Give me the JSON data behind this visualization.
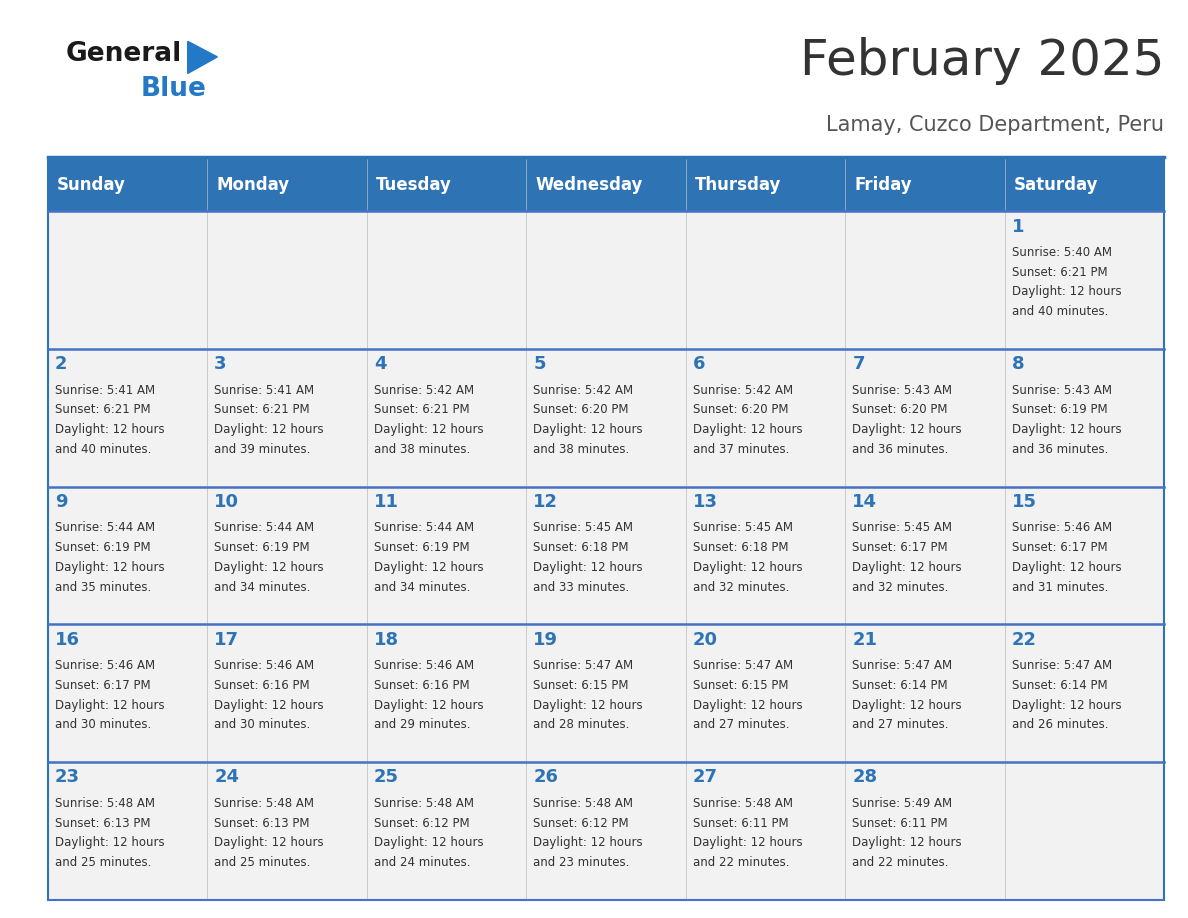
{
  "title": "February 2025",
  "subtitle": "Lamay, Cuzco Department, Peru",
  "days_of_week": [
    "Sunday",
    "Monday",
    "Tuesday",
    "Wednesday",
    "Thursday",
    "Friday",
    "Saturday"
  ],
  "header_bg": "#2E74B5",
  "header_text": "#FFFFFF",
  "row_bg_light": "#F2F2F2",
  "row_bg_white": "#FFFFFF",
  "cell_text_color": "#333333",
  "day_num_color": "#2E74B5",
  "border_color": "#2E74B5",
  "separator_color": "#4472C4",
  "title_color": "#333333",
  "subtitle_color": "#555555",
  "logo_text_color": "#1A1A1A",
  "logo_blue_color": "#2479C7",
  "calendar_data": [
    [
      {
        "day": "",
        "info": ""
      },
      {
        "day": "",
        "info": ""
      },
      {
        "day": "",
        "info": ""
      },
      {
        "day": "",
        "info": ""
      },
      {
        "day": "",
        "info": ""
      },
      {
        "day": "",
        "info": ""
      },
      {
        "day": "1",
        "info": "Sunrise: 5:40 AM\nSunset: 6:21 PM\nDaylight: 12 hours\nand 40 minutes."
      }
    ],
    [
      {
        "day": "2",
        "info": "Sunrise: 5:41 AM\nSunset: 6:21 PM\nDaylight: 12 hours\nand 40 minutes."
      },
      {
        "day": "3",
        "info": "Sunrise: 5:41 AM\nSunset: 6:21 PM\nDaylight: 12 hours\nand 39 minutes."
      },
      {
        "day": "4",
        "info": "Sunrise: 5:42 AM\nSunset: 6:21 PM\nDaylight: 12 hours\nand 38 minutes."
      },
      {
        "day": "5",
        "info": "Sunrise: 5:42 AM\nSunset: 6:20 PM\nDaylight: 12 hours\nand 38 minutes."
      },
      {
        "day": "6",
        "info": "Sunrise: 5:42 AM\nSunset: 6:20 PM\nDaylight: 12 hours\nand 37 minutes."
      },
      {
        "day": "7",
        "info": "Sunrise: 5:43 AM\nSunset: 6:20 PM\nDaylight: 12 hours\nand 36 minutes."
      },
      {
        "day": "8",
        "info": "Sunrise: 5:43 AM\nSunset: 6:19 PM\nDaylight: 12 hours\nand 36 minutes."
      }
    ],
    [
      {
        "day": "9",
        "info": "Sunrise: 5:44 AM\nSunset: 6:19 PM\nDaylight: 12 hours\nand 35 minutes."
      },
      {
        "day": "10",
        "info": "Sunrise: 5:44 AM\nSunset: 6:19 PM\nDaylight: 12 hours\nand 34 minutes."
      },
      {
        "day": "11",
        "info": "Sunrise: 5:44 AM\nSunset: 6:19 PM\nDaylight: 12 hours\nand 34 minutes."
      },
      {
        "day": "12",
        "info": "Sunrise: 5:45 AM\nSunset: 6:18 PM\nDaylight: 12 hours\nand 33 minutes."
      },
      {
        "day": "13",
        "info": "Sunrise: 5:45 AM\nSunset: 6:18 PM\nDaylight: 12 hours\nand 32 minutes."
      },
      {
        "day": "14",
        "info": "Sunrise: 5:45 AM\nSunset: 6:17 PM\nDaylight: 12 hours\nand 32 minutes."
      },
      {
        "day": "15",
        "info": "Sunrise: 5:46 AM\nSunset: 6:17 PM\nDaylight: 12 hours\nand 31 minutes."
      }
    ],
    [
      {
        "day": "16",
        "info": "Sunrise: 5:46 AM\nSunset: 6:17 PM\nDaylight: 12 hours\nand 30 minutes."
      },
      {
        "day": "17",
        "info": "Sunrise: 5:46 AM\nSunset: 6:16 PM\nDaylight: 12 hours\nand 30 minutes."
      },
      {
        "day": "18",
        "info": "Sunrise: 5:46 AM\nSunset: 6:16 PM\nDaylight: 12 hours\nand 29 minutes."
      },
      {
        "day": "19",
        "info": "Sunrise: 5:47 AM\nSunset: 6:15 PM\nDaylight: 12 hours\nand 28 minutes."
      },
      {
        "day": "20",
        "info": "Sunrise: 5:47 AM\nSunset: 6:15 PM\nDaylight: 12 hours\nand 27 minutes."
      },
      {
        "day": "21",
        "info": "Sunrise: 5:47 AM\nSunset: 6:14 PM\nDaylight: 12 hours\nand 27 minutes."
      },
      {
        "day": "22",
        "info": "Sunrise: 5:47 AM\nSunset: 6:14 PM\nDaylight: 12 hours\nand 26 minutes."
      }
    ],
    [
      {
        "day": "23",
        "info": "Sunrise: 5:48 AM\nSunset: 6:13 PM\nDaylight: 12 hours\nand 25 minutes."
      },
      {
        "day": "24",
        "info": "Sunrise: 5:48 AM\nSunset: 6:13 PM\nDaylight: 12 hours\nand 25 minutes."
      },
      {
        "day": "25",
        "info": "Sunrise: 5:48 AM\nSunset: 6:12 PM\nDaylight: 12 hours\nand 24 minutes."
      },
      {
        "day": "26",
        "info": "Sunrise: 5:48 AM\nSunset: 6:12 PM\nDaylight: 12 hours\nand 23 minutes."
      },
      {
        "day": "27",
        "info": "Sunrise: 5:48 AM\nSunset: 6:11 PM\nDaylight: 12 hours\nand 22 minutes."
      },
      {
        "day": "28",
        "info": "Sunrise: 5:49 AM\nSunset: 6:11 PM\nDaylight: 12 hours\nand 22 minutes."
      },
      {
        "day": "",
        "info": ""
      }
    ]
  ]
}
